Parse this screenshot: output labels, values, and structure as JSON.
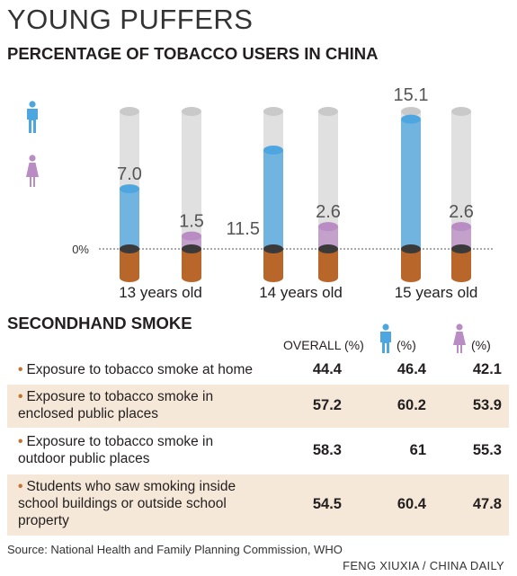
{
  "title": "YOUNG PUFFERS",
  "subtitle": "PERCENTAGE OF TOBACCO USERS IN CHINA",
  "colors": {
    "male": "#4ea6e0",
    "female": "#b98cc4",
    "butt": "#b8662a",
    "cigarette": "#d9d9d9"
  },
  "icons": {
    "male": "male-figure-icon",
    "female": "female-figure-icon"
  },
  "chart_data": {
    "type": "bar",
    "categories": [
      "13 years old",
      "14 years old",
      "15 years old"
    ],
    "series": [
      {
        "values": [
          7.0,
          11.5,
          15.1
        ]
      },
      {
        "values": [
          1.5,
          2.6,
          2.6
        ]
      }
    ],
    "value_labels": [
      [
        "7.0",
        "11.5",
        "15.1"
      ],
      [
        "1.5",
        "2.6",
        "2.6"
      ]
    ],
    "ylim": [
      0,
      16
    ],
    "baseline_label": "0%",
    "grid": false
  },
  "secondhand": {
    "title": "SECONDHAND SMOKE",
    "headers": {
      "overall": "OVERALL (%)",
      "male": "(%)",
      "female": "(%)"
    },
    "rows": [
      {
        "bullet": "•",
        "label": [
          "Exposure to tobacco smoke at home"
        ],
        "overall": "44.4",
        "male": "46.4",
        "female": "42.1"
      },
      {
        "bullet": "•",
        "label": [
          "Exposure to tobacco smoke in",
          "enclosed public places"
        ],
        "overall": "57.2",
        "male": "60.2",
        "female": "53.9"
      },
      {
        "bullet": "•",
        "label": [
          "Exposure to tobacco smoke in",
          "outdoor public places"
        ],
        "overall": "58.3",
        "male": "61",
        "female": "55.3"
      },
      {
        "bullet": "•",
        "label": [
          "Students who saw smoking inside",
          "school buildings or outside school",
          "property"
        ],
        "overall": "54.5",
        "male": "60.4",
        "female": "47.8"
      }
    ]
  },
  "source": "Source: National Health and Family Planning Commission, WHO",
  "credit": "FENG XIUXIA / CHINA DAILY"
}
